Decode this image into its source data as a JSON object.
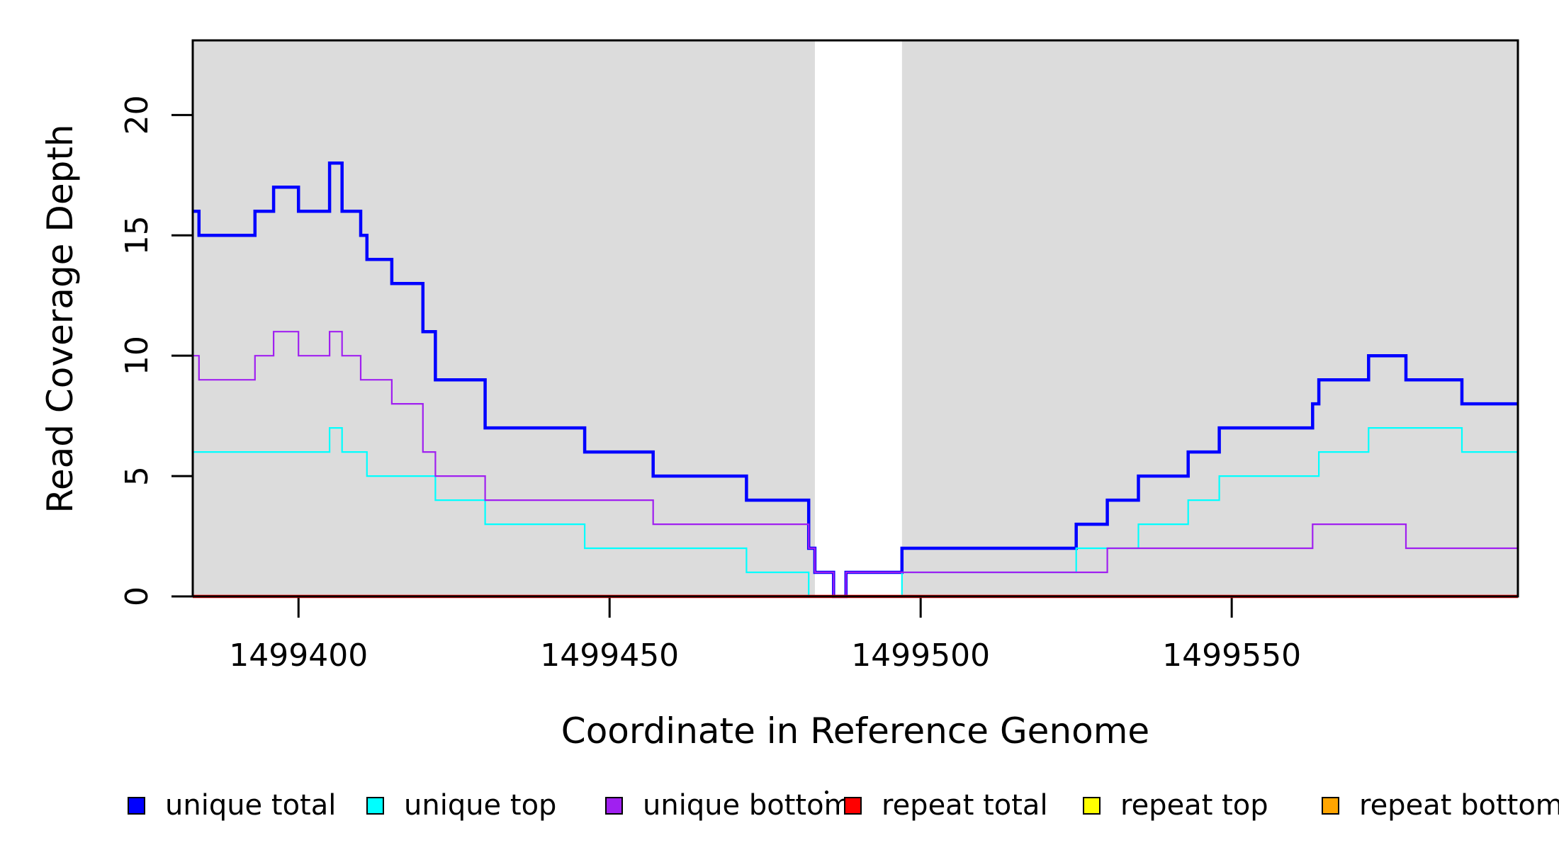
{
  "chart_data": {
    "type": "line",
    "subtype": "step-coverage",
    "title": "",
    "xlabel": "Coordinate in Reference Genome",
    "ylabel": "Read Coverage Depth",
    "xlim": [
      1499383,
      1499596
    ],
    "ylim": [
      0,
      23.1
    ],
    "x_ticks": [
      1499400,
      1499450,
      1499500,
      1499550
    ],
    "y_ticks": [
      0,
      5,
      10,
      15,
      20
    ],
    "grid": "off",
    "legend_position": "bottom",
    "plot_background_color": "#DCDCDC",
    "gap_band": {
      "x0": 1499483,
      "x1": 1499497,
      "color": "#FFFFFF"
    },
    "series": [
      {
        "name": "unique total",
        "color": "#0000FF",
        "line_width": 4.5,
        "steps": [
          [
            1499383,
            16
          ],
          [
            1499384,
            15
          ],
          [
            1499393,
            16
          ],
          [
            1499396,
            17
          ],
          [
            1499400,
            16
          ],
          [
            1499405,
            18
          ],
          [
            1499407,
            16
          ],
          [
            1499410,
            15
          ],
          [
            1499411,
            14
          ],
          [
            1499415,
            13
          ],
          [
            1499420,
            11
          ],
          [
            1499422,
            9
          ],
          [
            1499430,
            7
          ],
          [
            1499446,
            6
          ],
          [
            1499457,
            5
          ],
          [
            1499472,
            4
          ],
          [
            1499482,
            2
          ],
          [
            1499483,
            1
          ],
          [
            1499486,
            0
          ],
          [
            1499488,
            1
          ],
          [
            1499497,
            2
          ],
          [
            1499525,
            3
          ],
          [
            1499530,
            4
          ],
          [
            1499535,
            5
          ],
          [
            1499543,
            6
          ],
          [
            1499548,
            7
          ],
          [
            1499563,
            8
          ],
          [
            1499564,
            9
          ],
          [
            1499572,
            10
          ],
          [
            1499578,
            9
          ],
          [
            1499587,
            8
          ]
        ]
      },
      {
        "name": "unique top",
        "color": "#00FFFF",
        "line_width": 2.2,
        "steps": [
          [
            1499383,
            6
          ],
          [
            1499405,
            7
          ],
          [
            1499407,
            6
          ],
          [
            1499411,
            5
          ],
          [
            1499422,
            4
          ],
          [
            1499430,
            3
          ],
          [
            1499446,
            2
          ],
          [
            1499472,
            1
          ],
          [
            1499482,
            0
          ],
          [
            1499497,
            1
          ],
          [
            1499525,
            2
          ],
          [
            1499535,
            3
          ],
          [
            1499543,
            4
          ],
          [
            1499548,
            5
          ],
          [
            1499564,
            6
          ],
          [
            1499572,
            7
          ],
          [
            1499587,
            6
          ]
        ]
      },
      {
        "name": "unique bottom",
        "color": "#A020F0",
        "line_width": 2.2,
        "steps": [
          [
            1499383,
            10
          ],
          [
            1499384,
            9
          ],
          [
            1499393,
            10
          ],
          [
            1499396,
            11
          ],
          [
            1499400,
            10
          ],
          [
            1499405,
            11
          ],
          [
            1499407,
            10
          ],
          [
            1499410,
            9
          ],
          [
            1499415,
            8
          ],
          [
            1499420,
            6
          ],
          [
            1499422,
            5
          ],
          [
            1499430,
            4
          ],
          [
            1499457,
            3
          ],
          [
            1499482,
            2
          ],
          [
            1499483,
            1
          ],
          [
            1499486,
            0
          ],
          [
            1499488,
            1
          ],
          [
            1499530,
            2
          ],
          [
            1499563,
            3
          ],
          [
            1499578,
            2
          ]
        ]
      },
      {
        "name": "repeat total",
        "color": "#FF0000",
        "line_width": 4.5,
        "steps": [
          [
            1499383,
            0
          ]
        ]
      },
      {
        "name": "repeat top",
        "color": "#FFFF00",
        "line_width": 2.2,
        "steps": [
          [
            1499383,
            0
          ]
        ]
      },
      {
        "name": "repeat bottom",
        "color": "#FFA500",
        "line_width": 2.6,
        "steps": [
          [
            1499383,
            0
          ]
        ]
      }
    ]
  },
  "axis": {
    "x_title": "Coordinate in Reference Genome",
    "y_title": "Read Coverage Depth"
  },
  "legend": {
    "items": [
      {
        "label": "unique total",
        "color": "#0000FF"
      },
      {
        "label": "unique top",
        "color": "#00FFFF"
      },
      {
        "label": "unique bottom",
        "color": "#A020F0"
      },
      {
        "label": "repeat total",
        "color": "#FF0000"
      },
      {
        "label": "repeat top",
        "color": "#FFFF00"
      },
      {
        "label": "repeat bottom",
        "color": "#FFA500"
      }
    ]
  }
}
